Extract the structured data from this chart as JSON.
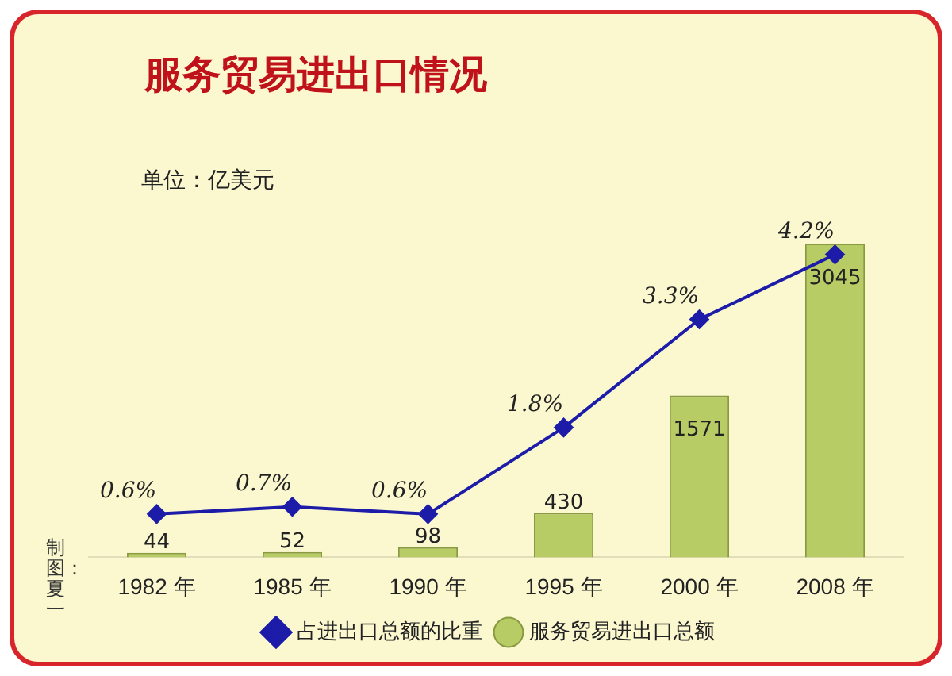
{
  "chart_data": {
    "type": "bar",
    "title": "服务贸易进出口情况",
    "annotations": [
      "单位：亿美元",
      "制图：夏一"
    ],
    "categories": [
      "1982 年",
      "1985 年",
      "1990 年",
      "1995 年",
      "2000 年",
      "2008 年"
    ],
    "series": [
      {
        "name": "服务贸易进出口总额",
        "type": "bar",
        "color": "#b8cc66",
        "values": [
          44,
          52,
          98,
          430,
          1571,
          3045
        ],
        "value_labels": [
          "44",
          "52",
          "98",
          "430",
          "1571",
          "3045"
        ]
      },
      {
        "name": "占进出口总额的比重",
        "type": "line",
        "axis": "y2",
        "color": "#1c1ca8",
        "values": [
          0.6,
          0.7,
          0.6,
          1.8,
          3.3,
          4.2
        ],
        "value_labels": [
          "0.6%",
          "0.7%",
          "0.6%",
          "1.8%",
          "3.3%",
          "4.2%"
        ]
      }
    ],
    "marker": "diamond",
    "legend": "bottom",
    "grid": false
  }
}
